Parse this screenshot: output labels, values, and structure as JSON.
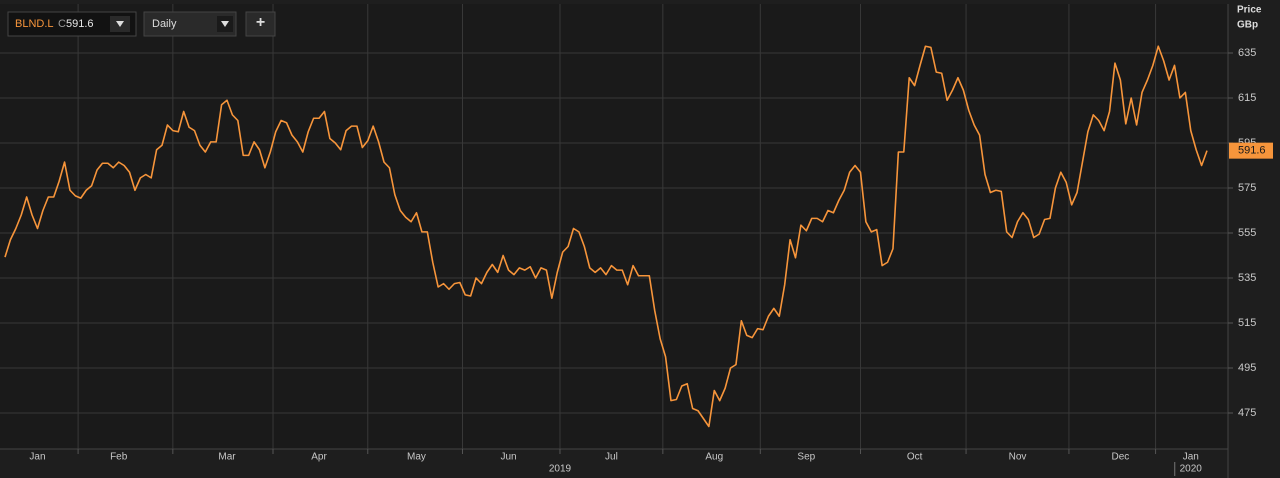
{
  "toolbar": {
    "symbol": "BLND.L",
    "close_prefix": "C",
    "interval": "Daily",
    "add": "+"
  },
  "chart_data": {
    "type": "line",
    "axis_title": [
      "Price",
      "GBp"
    ],
    "years": [
      "2019",
      "2020"
    ],
    "series": [
      {
        "name": "BLND.L",
        "color": "#f7953b",
        "values": [
          544.3,
          552,
          557,
          563,
          571,
          563,
          557,
          565,
          571,
          571,
          578,
          586.5,
          574,
          571.5,
          570.5,
          574,
          576,
          583,
          586,
          586,
          584,
          586.5,
          585,
          582,
          574,
          579.5,
          581,
          579.5,
          592,
          594,
          603,
          600.5,
          600,
          609,
          602,
          600.5,
          594,
          591,
          595.5,
          595.5,
          612,
          614,
          607.5,
          605,
          589.5,
          589.5,
          595.5,
          592,
          584,
          591,
          600,
          605,
          604,
          598.5,
          595.5,
          591,
          600,
          606,
          606,
          609,
          597,
          595,
          592,
          600.5,
          602.5,
          602.5,
          593,
          596,
          602.5,
          595.5,
          586.5,
          584,
          572,
          565,
          562,
          560,
          564,
          555.5,
          555.5,
          542,
          531,
          532.5,
          530,
          532.5,
          533,
          527.5,
          527,
          535,
          532.5,
          537.5,
          541,
          537.5,
          545,
          538.5,
          536.5,
          539.5,
          538.5,
          540,
          535,
          539.5,
          538.5,
          526,
          537.5,
          546.5,
          549,
          557,
          555.5,
          549,
          539.5,
          537.5,
          539.5,
          536.5,
          540.5,
          538.5,
          538.5,
          532,
          540.5,
          536,
          536,
          536,
          520.5,
          508,
          500,
          480.5,
          481,
          487,
          488,
          477,
          476,
          472.5,
          469,
          485,
          480.5,
          486,
          495,
          496.5,
          516,
          509.5,
          508.5,
          512.5,
          512,
          518,
          521.5,
          518,
          532,
          552,
          544,
          558.5,
          556,
          561.5,
          561.5,
          560,
          565,
          564,
          569.5,
          574,
          582,
          585,
          582,
          560,
          555.5,
          556.5,
          540.5,
          542,
          548,
          591,
          591,
          624,
          620.5,
          629.5,
          638,
          637.5,
          626.5,
          626,
          614,
          618.5,
          624,
          618.5,
          609.5,
          603,
          598.5,
          581,
          573,
          574,
          573.5,
          555.5,
          553,
          560,
          564,
          561,
          553,
          554.5,
          561,
          561.5,
          575,
          582,
          577.5,
          567.5,
          573,
          586.5,
          600,
          607.5,
          605,
          600.5,
          609,
          630.5,
          623,
          603.5,
          615,
          603,
          617.5,
          623,
          629.5,
          638,
          631.5,
          623,
          629.5,
          615,
          617.5,
          600.5,
          592,
          585,
          591.6
        ]
      }
    ],
    "categories": [
      null,
      null,
      null,
      null,
      null,
      null,
      "Jan",
      null,
      null,
      null,
      null,
      null,
      null,
      null,
      null,
      null,
      null,
      null,
      null,
      null,
      null,
      "Feb",
      null,
      null,
      null,
      null,
      null,
      null,
      null,
      null,
      null,
      null,
      null,
      null,
      null,
      null,
      null,
      null,
      null,
      null,
      null,
      "Mar",
      null,
      null,
      null,
      null,
      null,
      null,
      null,
      null,
      null,
      null,
      null,
      null,
      null,
      null,
      null,
      null,
      "Apr",
      null,
      null,
      null,
      null,
      null,
      null,
      null,
      null,
      null,
      null,
      null,
      null,
      null,
      null,
      null,
      null,
      null,
      "May",
      null,
      null,
      null,
      null,
      null,
      null,
      null,
      null,
      null,
      null,
      null,
      null,
      null,
      null,
      null,
      null,
      "Jun",
      null,
      null,
      null,
      null,
      null,
      null,
      null,
      null,
      null,
      null,
      null,
      null,
      null,
      null,
      null,
      null,
      null,
      null,
      "Jul",
      null,
      null,
      null,
      null,
      null,
      null,
      null,
      null,
      null,
      null,
      null,
      null,
      null,
      null,
      null,
      null,
      null,
      null,
      "Aug",
      null,
      null,
      null,
      null,
      null,
      null,
      null,
      null,
      null,
      null,
      null,
      null,
      null,
      null,
      null,
      null,
      "Sep",
      null,
      null,
      null,
      null,
      null,
      null,
      null,
      null,
      null,
      null,
      null,
      null,
      null,
      null,
      null,
      null,
      null,
      null,
      null,
      "Oct",
      null,
      null,
      null,
      null,
      null,
      null,
      null,
      null,
      null,
      null,
      null,
      null,
      null,
      null,
      null,
      null,
      null,
      null,
      "Nov",
      null,
      null,
      null,
      null,
      null,
      null,
      null,
      null,
      null,
      null,
      null,
      null,
      null,
      null,
      null,
      null,
      null,
      null,
      "Dec",
      null,
      null,
      null,
      null,
      null,
      null,
      null,
      null,
      null,
      null,
      null,
      null,
      "Jan",
      null,
      null,
      null
    ],
    "ylim": [
      459,
      656
    ],
    "yticks": [
      475,
      495,
      515,
      535,
      555,
      575,
      595,
      615,
      635
    ],
    "grid": true
  }
}
